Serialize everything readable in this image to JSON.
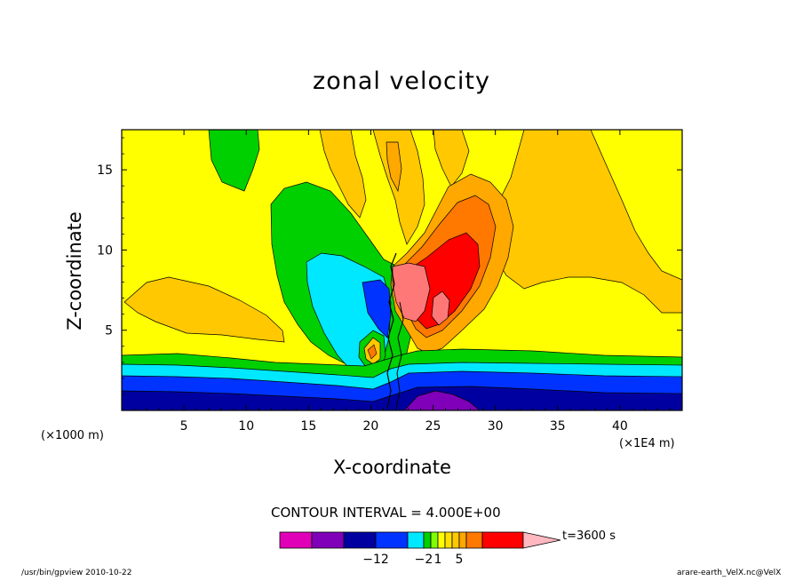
{
  "chart_data": {
    "type": "heatmap",
    "title": "zonal velocity",
    "xlabel": "X-coordinate",
    "ylabel": "Z-coordinate",
    "x_unit_left": "(×1000 m)",
    "x_unit_right": "(×1E4 m)",
    "xlim": [
      0,
      45
    ],
    "ylim": [
      0,
      17.5
    ],
    "x_ticks": [
      5,
      10,
      15,
      20,
      25,
      30,
      35,
      40
    ],
    "y_ticks": [
      5,
      10,
      15
    ],
    "contour_interval_text": "CONTOUR INTERVAL = 4.000E+00",
    "time_text": "t=3600 s",
    "colorbar": {
      "labels": [
        {
          "text": "−12",
          "after_box": 3
        },
        {
          "text": "−2",
          "after_box": 5
        },
        {
          "text": "1",
          "after_box": 7
        },
        {
          "text": "5",
          "after_box": 10
        }
      ],
      "colors": [
        "#e000b8",
        "#7f00b8",
        "#0000a0",
        "#0033ff",
        "#00e8ff",
        "#00d000",
        "#80ff00",
        "#ffff00",
        "#ffe000",
        "#ffc800",
        "#ffa800",
        "#ff7800",
        "#ff0000",
        "#ff7878",
        "#ffb8c0"
      ]
    },
    "background_level_color": "#ffff00"
  },
  "footer": {
    "left": "/usr/bin/gpview   2010-10-22",
    "right": "arare-earth_VelX.nc@VelX"
  }
}
